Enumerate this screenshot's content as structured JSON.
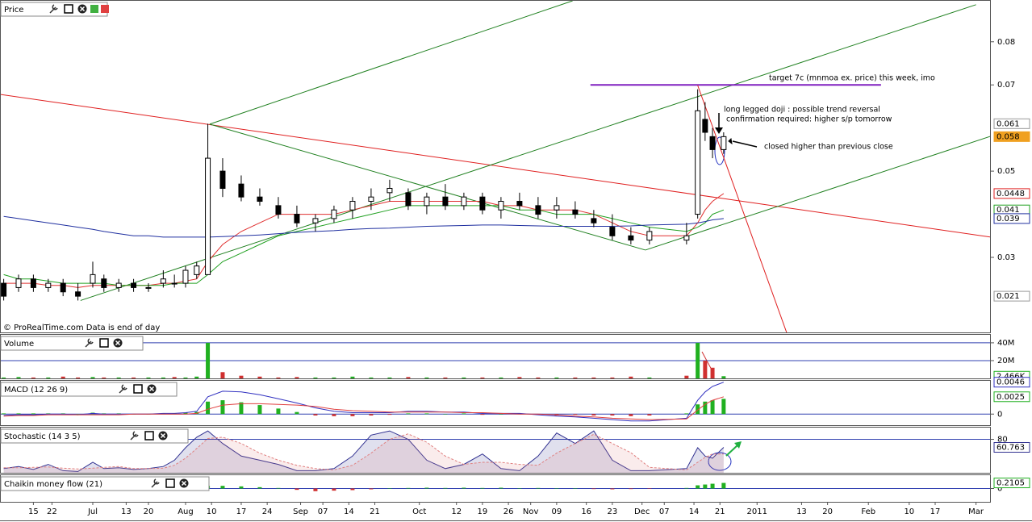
{
  "chart_data": [
    {
      "type": "candlestick",
      "title": "Price",
      "footer": "© ProRealTime.com  Data is end of day",
      "x": [
        1,
        5,
        9,
        13,
        17,
        21,
        25,
        28,
        32,
        36,
        40,
        44,
        47,
        50,
        53,
        56,
        60,
        65,
        70,
        75,
        80,
        85,
        90,
        95,
        100,
        105,
        110,
        115,
        120,
        125,
        130,
        135,
        140,
        145,
        150,
        155,
        160,
        165,
        170,
        175,
        185,
        188,
        190,
        192,
        195
      ],
      "open": [
        0.024,
        0.023,
        0.025,
        0.023,
        0.024,
        0.022,
        0.024,
        0.025,
        0.023,
        0.024,
        0.023,
        0.024,
        0.024,
        0.024,
        0.026,
        0.026,
        0.05,
        0.047,
        0.044,
        0.042,
        0.04,
        0.038,
        0.039,
        0.041,
        0.043,
        0.045,
        0.045,
        0.042,
        0.044,
        0.042,
        0.044,
        0.041,
        0.043,
        0.042,
        0.041,
        0.041,
        0.039,
        0.037,
        0.035,
        0.034,
        0.034,
        0.04,
        0.062,
        0.058,
        0.055
      ],
      "high": [
        0.025,
        0.026,
        0.026,
        0.025,
        0.025,
        0.024,
        0.029,
        0.026,
        0.025,
        0.025,
        0.024,
        0.027,
        0.026,
        0.028,
        0.029,
        0.061,
        0.053,
        0.049,
        0.046,
        0.044,
        0.042,
        0.04,
        0.042,
        0.044,
        0.046,
        0.048,
        0.046,
        0.045,
        0.047,
        0.045,
        0.045,
        0.044,
        0.045,
        0.044,
        0.044,
        0.043,
        0.041,
        0.04,
        0.037,
        0.037,
        0.038,
        0.069,
        0.066,
        0.06,
        0.059
      ],
      "low": [
        0.02,
        0.022,
        0.022,
        0.022,
        0.021,
        0.02,
        0.023,
        0.022,
        0.022,
        0.022,
        0.022,
        0.023,
        0.023,
        0.023,
        0.025,
        0.026,
        0.044,
        0.043,
        0.042,
        0.039,
        0.037,
        0.036,
        0.038,
        0.039,
        0.041,
        0.043,
        0.041,
        0.04,
        0.041,
        0.041,
        0.04,
        0.039,
        0.041,
        0.039,
        0.039,
        0.039,
        0.037,
        0.034,
        0.033,
        0.033,
        0.033,
        0.039,
        0.057,
        0.053,
        0.054
      ],
      "close": [
        0.021,
        0.025,
        0.023,
        0.024,
        0.022,
        0.021,
        0.026,
        0.023,
        0.024,
        0.023,
        0.023,
        0.025,
        0.024,
        0.027,
        0.028,
        0.053,
        0.046,
        0.044,
        0.043,
        0.04,
        0.038,
        0.039,
        0.041,
        0.043,
        0.044,
        0.046,
        0.042,
        0.044,
        0.042,
        0.044,
        0.041,
        0.043,
        0.042,
        0.04,
        0.042,
        0.04,
        0.038,
        0.035,
        0.034,
        0.036,
        0.035,
        0.064,
        0.059,
        0.055,
        0.058
      ],
      "up_color": "#ffffff",
      "down_color": "#000000",
      "moving_averages": [
        {
          "color": "#e03030",
          "values": [
            0.024,
            0.024,
            0.024,
            0.0235,
            0.0235,
            0.023,
            0.0235,
            0.0235,
            0.0235,
            0.0235,
            0.0235,
            0.024,
            0.024,
            0.0245,
            0.025,
            0.029,
            0.033,
            0.036,
            0.038,
            0.04,
            0.04,
            0.04,
            0.04,
            0.041,
            0.042,
            0.043,
            0.043,
            0.043,
            0.043,
            0.043,
            0.043,
            0.042,
            0.042,
            0.041,
            0.041,
            0.041,
            0.04,
            0.038,
            0.036,
            0.035,
            0.035,
            0.038,
            0.041,
            0.043,
            0.0448
          ]
        },
        {
          "color": "#20a020",
          "values": [
            0.026,
            0.025,
            0.025,
            0.0245,
            0.024,
            0.024,
            0.024,
            0.024,
            0.0235,
            0.0235,
            0.0235,
            0.0235,
            0.024,
            0.024,
            0.024,
            0.026,
            0.029,
            0.031,
            0.033,
            0.035,
            0.036,
            0.037,
            0.038,
            0.039,
            0.04,
            0.041,
            0.042,
            0.042,
            0.042,
            0.042,
            0.042,
            0.042,
            0.041,
            0.041,
            0.04,
            0.04,
            0.04,
            0.039,
            0.038,
            0.037,
            0.036,
            0.037,
            0.038,
            0.04,
            0.041
          ]
        },
        {
          "color": "#2030a0",
          "values": [
            0.0395,
            0.039,
            0.0385,
            0.038,
            0.0375,
            0.037,
            0.0365,
            0.036,
            0.0355,
            0.035,
            0.035,
            0.0347,
            0.0347,
            0.0347,
            0.0347,
            0.0347,
            0.0348,
            0.035,
            0.0352,
            0.0355,
            0.0358,
            0.036,
            0.0362,
            0.0365,
            0.0367,
            0.0368,
            0.037,
            0.0372,
            0.0373,
            0.0374,
            0.0375,
            0.0375,
            0.0374,
            0.0373,
            0.0372,
            0.0372,
            0.0372,
            0.0372,
            0.0373,
            0.0375,
            0.0377,
            0.038,
            0.0383,
            0.0387,
            0.039
          ]
        }
      ],
      "trendlines": [
        {
          "color": "#e02020",
          "x": [
            0,
            267
          ],
          "y": [
            0.0678,
            0.0347
          ]
        },
        {
          "color": "#208020",
          "x": [
            56.5,
            154.3
          ],
          "y": [
            0.0609,
            0.0895
          ]
        },
        {
          "color": "#208020",
          "x": [
            21.7,
            263
          ],
          "y": [
            0.02,
            0.0886
          ]
        },
        {
          "color": "#208020",
          "x": [
            173.9,
            267
          ],
          "y": [
            0.0317,
            0.0581
          ]
        },
        {
          "color": "#208020",
          "x": [
            56.5,
            173.9
          ],
          "y": [
            0.0609,
            0.0317
          ]
        },
        {
          "color": "#8020c0",
          "x": [
            159.1,
            237.4
          ],
          "y": [
            0.07,
            0.07
          ]
        },
        {
          "color": "#e02020",
          "x": [
            188,
            212
          ],
          "y": [
            0.0699,
            0.0125
          ]
        }
      ],
      "xlim": [
        0,
        267
      ],
      "xticks": [
        {
          "value": 9,
          "label": "15"
        },
        {
          "value": 14,
          "label": "22"
        },
        {
          "value": 25,
          "label": "Jul"
        },
        {
          "value": 34,
          "label": "13"
        },
        {
          "value": 40,
          "label": "20"
        },
        {
          "value": 50,
          "label": "Aug"
        },
        {
          "value": 57,
          "label": "10"
        },
        {
          "value": 65,
          "label": "17"
        },
        {
          "value": 72,
          "label": "24"
        },
        {
          "value": 81,
          "label": "Sep"
        },
        {
          "value": 87,
          "label": "07"
        },
        {
          "value": 94,
          "label": "14"
        },
        {
          "value": 101,
          "label": "21"
        },
        {
          "value": 113,
          "label": "Oct"
        },
        {
          "value": 123,
          "label": "12"
        },
        {
          "value": 130,
          "label": "19"
        },
        {
          "value": 137,
          "label": "26"
        },
        {
          "value": 143,
          "label": "Nov"
        },
        {
          "value": 150,
          "label": "09"
        },
        {
          "value": 158,
          "label": "16"
        },
        {
          "value": 165,
          "label": "23"
        },
        {
          "value": 173,
          "label": "Dec"
        },
        {
          "value": 179,
          "label": "07"
        },
        {
          "value": 187,
          "label": "14"
        },
        {
          "value": 194,
          "label": "21"
        },
        {
          "value": 204,
          "label": "2011"
        },
        {
          "value": 216,
          "label": "13"
        },
        {
          "value": 223,
          "label": "20"
        },
        {
          "value": 234,
          "label": "Feb"
        },
        {
          "value": 245,
          "label": "10"
        },
        {
          "value": 252,
          "label": "17"
        },
        {
          "value": 263,
          "label": "Mar"
        }
      ],
      "ylim": [
        0.0126,
        0.0895
      ],
      "yticks": [
        0.03,
        0.05,
        0.07,
        0.08
      ],
      "value_tags": [
        {
          "value": 0.061,
          "color": "#999999"
        },
        {
          "value": 0.058,
          "color": "#f0a020"
        },
        {
          "value": 0.0448,
          "color": "#e02020"
        },
        {
          "value": 0.041,
          "color": "#20a020"
        },
        {
          "value": 0.039,
          "color": "#2030a0"
        },
        {
          "value": 0.021,
          "color": "#999999"
        }
      ],
      "annotations": [
        "target 7c (mnmoa ex. price) this week, imo",
        "long legged doji : possible trend reversal",
        "confirmation required: higher s/p tomorrow",
        "closed higher than previous close"
      ]
    },
    {
      "type": "bar",
      "title": "Volume",
      "up_color": "#20b020",
      "down_color": "#d03030",
      "values": [
        1,
        1.5,
        1,
        1,
        2,
        1,
        1.5,
        1,
        1,
        1,
        1,
        1,
        1.5,
        1,
        2,
        40,
        7,
        3,
        2,
        1,
        1.5,
        1,
        1,
        2,
        1,
        1,
        1.5,
        1,
        1,
        1,
        1,
        1,
        1.5,
        1,
        1,
        1,
        1,
        1,
        2,
        1,
        3,
        40,
        20,
        12,
        2.466
      ],
      "ylim": [
        0,
        49
      ],
      "yticks": [
        {
          "value": 20,
          "label": "20M"
        },
        {
          "value": 40,
          "label": "40M"
        }
      ],
      "value_tags": [
        {
          "value": 2.466,
          "label": "2,466K",
          "color": "#20b020"
        }
      ]
    },
    {
      "type": "macd",
      "title": "MACD (12 26 9)",
      "up_color": "#20b020",
      "down_color": "#d03030",
      "macd_color": "#3030c0",
      "signal_color": "#e04040",
      "histogram": [
        0.0001,
        0.0001,
        0.0001,
        0.0001,
        0.0001,
        0,
        0.0002,
        0.0001,
        0.0001,
        0,
        0,
        0.0001,
        0.0001,
        0.0002,
        0.0003,
        0.0018,
        0.002,
        0.0017,
        0.0013,
        0.0008,
        0.0003,
        -0.0002,
        -0.0003,
        -0.0003,
        -0.0002,
        -0.0001,
        0.0001,
        0.0001,
        0,
        0.0001,
        -0.0001,
        0,
        0.0001,
        -0.0001,
        -0.0002,
        -0.0001,
        -0.0002,
        -0.0002,
        -0.0003,
        -0.0002,
        0.0001,
        0.0014,
        0.0018,
        0.002,
        0.0022
      ],
      "macd": [
        -0.0002,
        -0.0001,
        -0.0001,
        0,
        0,
        -0.0001,
        0.0001,
        0,
        0,
        0,
        0,
        0.0001,
        0.0001,
        0.0002,
        0.0004,
        0.0025,
        0.0033,
        0.0032,
        0.0028,
        0.0022,
        0.0016,
        0.0009,
        0.0004,
        0.0002,
        0.0002,
        0.0002,
        0.0004,
        0.0004,
        0.0003,
        0.0003,
        0.0001,
        0.0001,
        0.0001,
        -0.0001,
        -0.0003,
        -0.0004,
        -0.0006,
        -0.0008,
        -0.001,
        -0.001,
        -0.0006,
        0.002,
        0.0032,
        0.004,
        0.0046
      ],
      "signal": [
        -0.0003,
        -0.0002,
        -0.0002,
        -0.0001,
        -0.0001,
        -0.0001,
        -0.0001,
        -0.0001,
        -0.0001,
        0,
        0,
        0,
        0,
        0,
        0.0001,
        0.0007,
        0.0013,
        0.0015,
        0.0015,
        0.0014,
        0.0013,
        0.0011,
        0.0007,
        0.0005,
        0.0004,
        0.0003,
        0.0003,
        0.0003,
        0.0003,
        0.0002,
        0.0002,
        0.0001,
        0,
        0,
        -0.0001,
        -0.0003,
        -0.0004,
        -0.0006,
        -0.0007,
        -0.0008,
        -0.0007,
        0.0006,
        0.0014,
        0.002,
        0.0025
      ],
      "ylim": [
        -0.0016,
        0.0048
      ],
      "yticks": [
        0
      ],
      "value_tags": [
        {
          "value": 0.0046,
          "color": "#3030c0"
        },
        {
          "value": 0.0025,
          "color": "#20b020"
        }
      ]
    },
    {
      "type": "line",
      "title": "Stochastic (14 3 5)",
      "series": [
        {
          "color": "#303090",
          "values": [
            10,
            15,
            8,
            20,
            5,
            3,
            25,
            10,
            12,
            8,
            10,
            15,
            30,
            60,
            85,
            100,
            70,
            40,
            30,
            20,
            5,
            5,
            10,
            40,
            90,
            100,
            80,
            30,
            10,
            20,
            45,
            10,
            5,
            40,
            95,
            70,
            100,
            30,
            5,
            5,
            10,
            60,
            40,
            35,
            60.763
          ]
        },
        {
          "color": "#e08080",
          "values": [
            12,
            12,
            13,
            14,
            11,
            9,
            11,
            13,
            15,
            10,
            10,
            11,
            18,
            35,
            58,
            82,
            85,
            70,
            47,
            30,
            18,
            10,
            7,
            18,
            47,
            80,
            93,
            73,
            40,
            20,
            25,
            25,
            20,
            18,
            47,
            70,
            92,
            70,
            48,
            13,
            7,
            25,
            37,
            45,
            45
          ]
        }
      ],
      "ylim": [
        0,
        108
      ],
      "yticks": [
        80
      ],
      "value_tags": [
        {
          "value": 60.763,
          "color": "#303090"
        }
      ]
    },
    {
      "type": "bar",
      "title": "Chaikin money flow (21)",
      "up_color": "#20b020",
      "down_color": "#d03030",
      "values": [
        0.02,
        0.03,
        0.02,
        0.02,
        0.03,
        0.03,
        0.04,
        0.03,
        0.03,
        0.04,
        0.05,
        0.05,
        0.06,
        0.06,
        0.08,
        0.1,
        0.1,
        0.08,
        0.05,
        0.02,
        -0.05,
        -0.1,
        -0.08,
        -0.06,
        -0.03,
        0.01,
        0.02,
        0.03,
        0.02,
        0.03,
        0.02,
        0.03,
        0.01,
        0.02,
        0.01,
        0,
        -0.02,
        -0.03,
        -0.02,
        -0.01,
        0.02,
        0.12,
        0.15,
        0.18,
        0.2105
      ],
      "ylim": [
        -0.5,
        0.5
      ],
      "yticks": [
        0
      ],
      "value_tags": [
        {
          "value": 0.2105,
          "color": "#20b020"
        }
      ]
    }
  ]
}
